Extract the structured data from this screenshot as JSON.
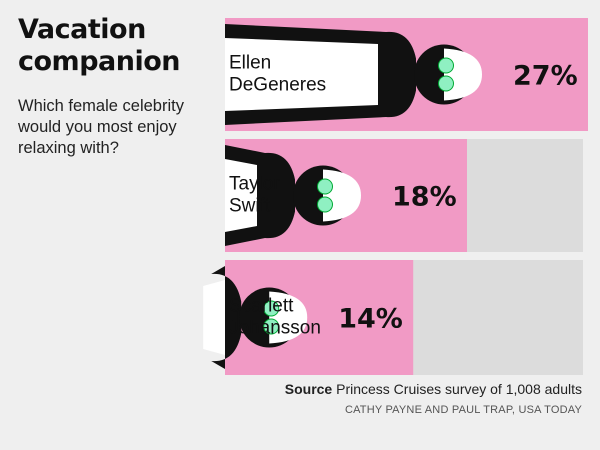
{
  "header": {
    "title": "Vacation companion",
    "subtitle": "Which female celebrity would you most enjoy relaxing with?"
  },
  "footer": {
    "source_label": "Source",
    "source_text": "Princess Cruises survey of 1,008 adults",
    "credit": "CATHY PAYNE AND PAUL TRAP, USA TODAY"
  },
  "colors": {
    "bar": "#f19ac5",
    "track": "#dcdcdc",
    "silhouette": "#111111",
    "towel": "#ffffff",
    "cucumber": "#8ff0c2",
    "background": "#efefef"
  },
  "chart_data": {
    "type": "bar",
    "orientation": "horizontal",
    "categories": [
      [
        "Ellen",
        "DeGeneres"
      ],
      [
        "Taylor",
        "Swift"
      ],
      [
        "Scarlett",
        "Johansson"
      ]
    ],
    "values": [
      27,
      18,
      14
    ],
    "value_labels": [
      "27%",
      "18%",
      "14%"
    ],
    "unit": "%",
    "xlim": [
      0,
      27
    ]
  }
}
